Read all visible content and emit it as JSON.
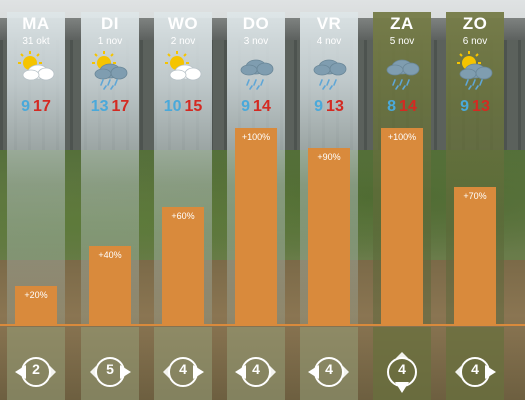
{
  "colors": {
    "min_temp": "#4aa9da",
    "max_temp": "#d42a22",
    "precip_bar": "#d98a3c",
    "weekend_panel": "#6b7240",
    "weekday_panel": "#dbe3e5"
  },
  "days": [
    {
      "day": "MA",
      "date": "31 okt",
      "icon": "sun-cloud-icon",
      "min": "9",
      "max": "17",
      "precip_label": "+20%",
      "precip": 20,
      "wind": "2",
      "wind_dir": "left",
      "weekend": false
    },
    {
      "day": "DI",
      "date": "1 nov",
      "icon": "sun-cloud-rain-icon",
      "min": "13",
      "max": "17",
      "precip_label": "+40%",
      "precip": 40,
      "wind": "5",
      "wind_dir": "right",
      "weekend": false
    },
    {
      "day": "WO",
      "date": "2 nov",
      "icon": "sun-cloud-icon",
      "min": "10",
      "max": "15",
      "precip_label": "+60%",
      "precip": 60,
      "wind": "4",
      "wind_dir": "right",
      "weekend": false
    },
    {
      "day": "DO",
      "date": "3 nov",
      "icon": "cloud-rain-icon",
      "min": "9",
      "max": "14",
      "precip_label": "+100%",
      "precip": 100,
      "wind": "4",
      "wind_dir": "left",
      "weekend": false
    },
    {
      "day": "VR",
      "date": "4 nov",
      "icon": "cloud-rain-icon",
      "min": "9",
      "max": "13",
      "precip_label": "+90%",
      "precip": 90,
      "wind": "4",
      "wind_dir": "left",
      "weekend": false
    },
    {
      "day": "ZA",
      "date": "5 nov",
      "icon": "cloud-rain-icon",
      "min": "8",
      "max": "14",
      "precip_label": "+100%",
      "precip": 100,
      "wind": "4",
      "wind_dir": "down",
      "weekend": true
    },
    {
      "day": "ZO",
      "date": "6 nov",
      "icon": "sun-cloud-rain-icon",
      "min": "9",
      "max": "13",
      "precip_label": "+70%",
      "precip": 70,
      "wind": "4",
      "wind_dir": "right",
      "weekend": true
    }
  ]
}
